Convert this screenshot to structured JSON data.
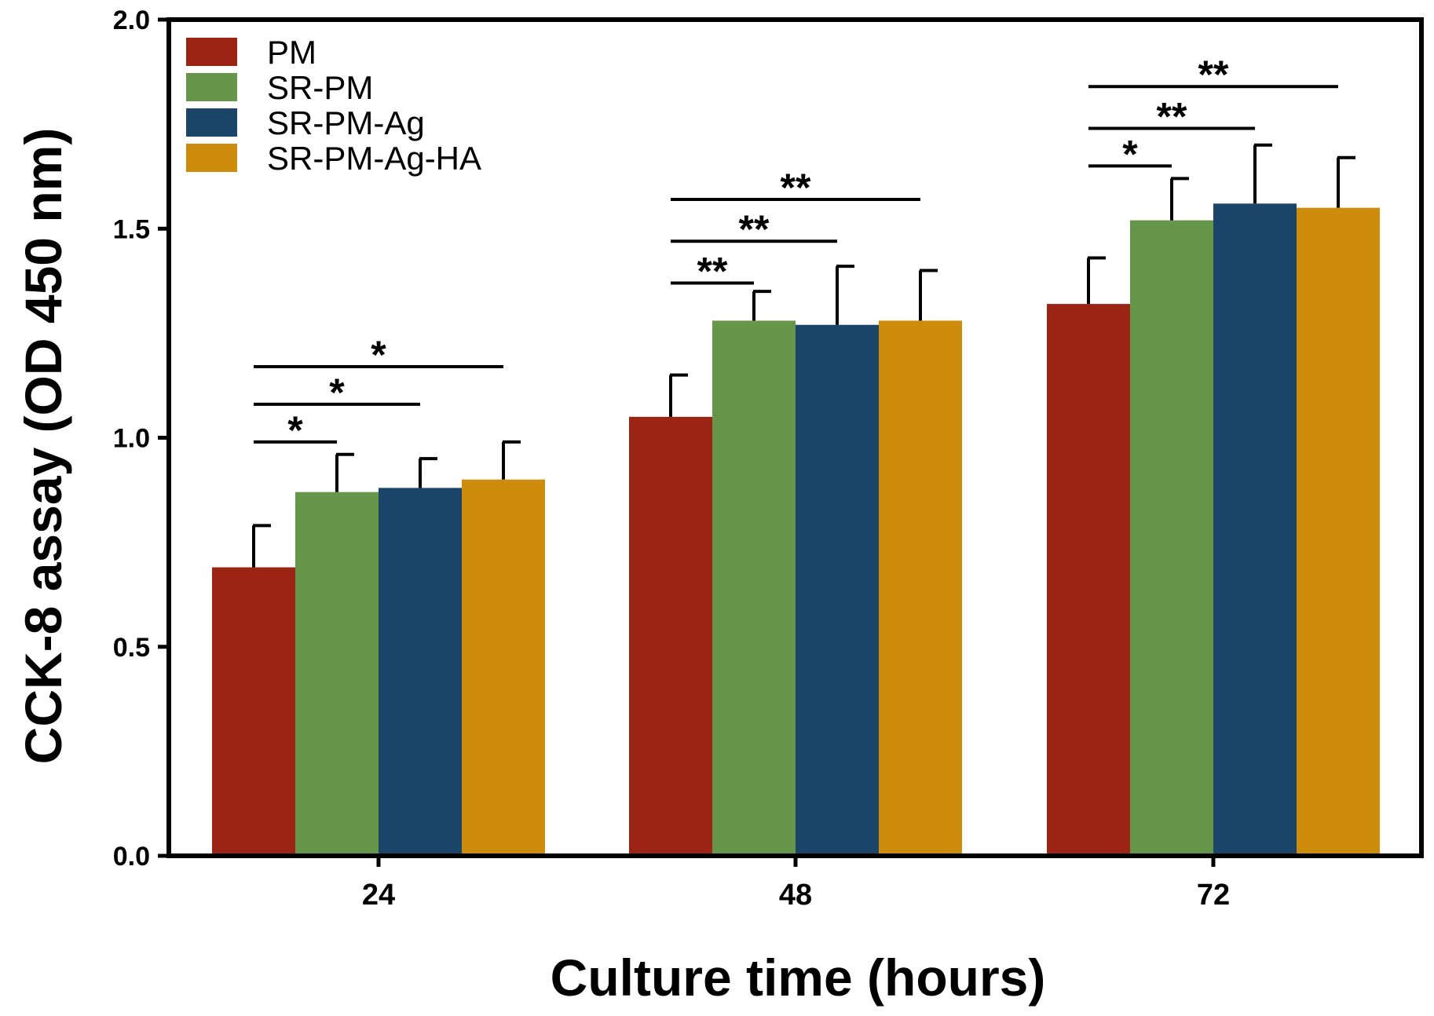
{
  "chart_data": {
    "type": "bar",
    "title": "",
    "xlabel": "Culture time (hours)",
    "ylabel": "CCK-8 assay (OD 450 nm)",
    "ylim": [
      0,
      2.0
    ],
    "yticks": [
      0.0,
      0.5,
      1.0,
      1.5,
      2.0
    ],
    "ytick_labels": [
      "0.0",
      "0.5",
      "1.0",
      "1.5",
      "2.0"
    ],
    "categories": [
      "24",
      "48",
      "72"
    ],
    "legend_position": "top-left",
    "series": [
      {
        "name": "PM",
        "color": "#9b2415",
        "values": [
          0.69,
          1.05,
          1.32
        ],
        "errors": [
          0.1,
          0.1,
          0.11
        ]
      },
      {
        "name": "SR-PM",
        "color": "#66964a",
        "values": [
          0.87,
          1.28,
          1.52
        ],
        "errors": [
          0.09,
          0.07,
          0.1
        ]
      },
      {
        "name": "SR-PM-Ag",
        "color": "#1a4569",
        "values": [
          0.88,
          1.27,
          1.56
        ],
        "errors": [
          0.07,
          0.14,
          0.14
        ]
      },
      {
        "name": "SR-PM-Ag-HA",
        "color": "#cd8c0c",
        "values": [
          0.9,
          1.28,
          1.55
        ],
        "errors": [
          0.09,
          0.12,
          0.12
        ]
      }
    ],
    "significance": [
      {
        "group": 0,
        "from": 0,
        "to": 1,
        "y": 0.99,
        "label": "*"
      },
      {
        "group": 0,
        "from": 0,
        "to": 2,
        "y": 1.08,
        "label": "*"
      },
      {
        "group": 0,
        "from": 0,
        "to": 3,
        "y": 1.17,
        "label": "*"
      },
      {
        "group": 1,
        "from": 0,
        "to": 1,
        "y": 1.37,
        "label": "**"
      },
      {
        "group": 1,
        "from": 0,
        "to": 2,
        "y": 1.47,
        "label": "**"
      },
      {
        "group": 1,
        "from": 0,
        "to": 3,
        "y": 1.57,
        "label": "**"
      },
      {
        "group": 2,
        "from": 0,
        "to": 1,
        "y": 1.65,
        "label": "*"
      },
      {
        "group": 2,
        "from": 0,
        "to": 2,
        "y": 1.74,
        "label": "**"
      },
      {
        "group": 2,
        "from": 0,
        "to": 3,
        "y": 1.84,
        "label": "**"
      }
    ]
  }
}
